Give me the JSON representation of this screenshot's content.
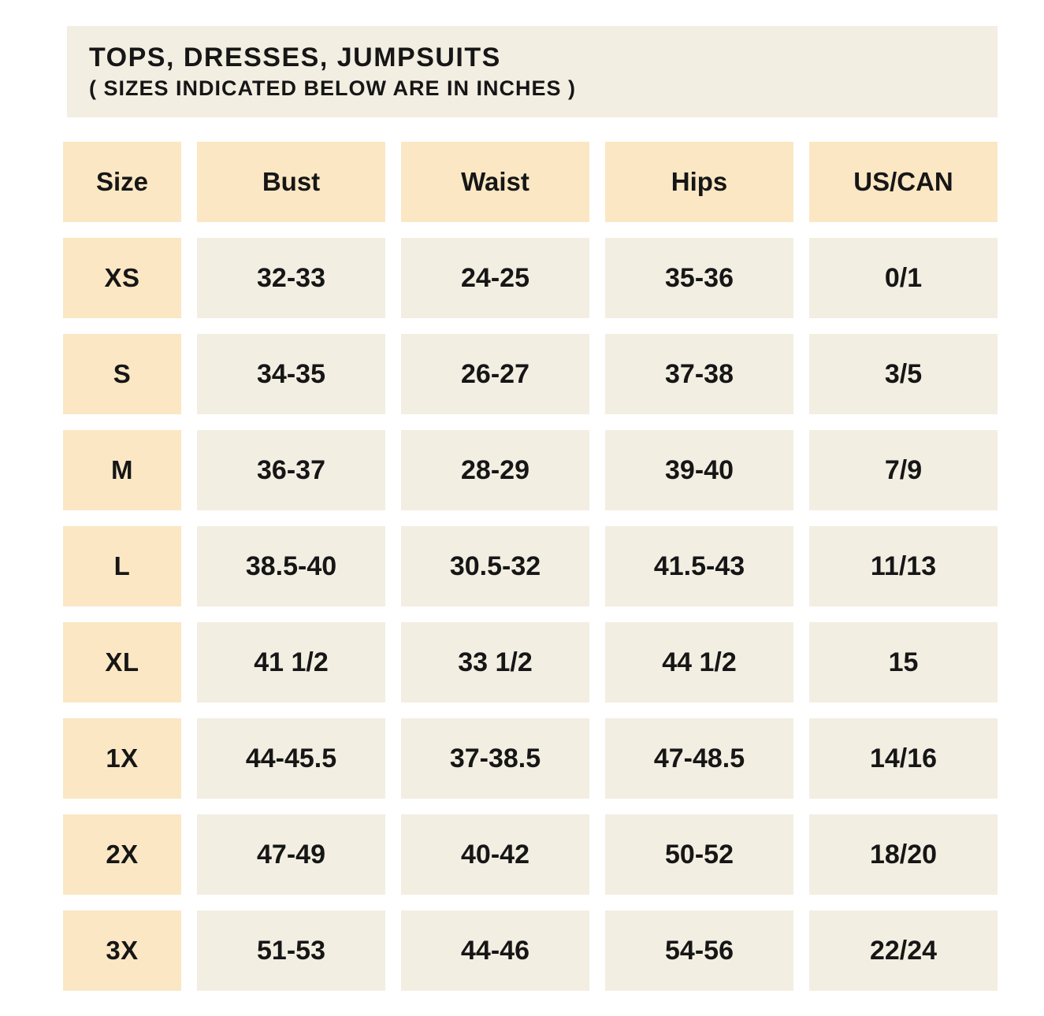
{
  "title": {
    "heading": "TOPS, DRESSES, JUMPSUITS",
    "subheading": "( SIZES INDICATED BELOW ARE IN INCHES )"
  },
  "chart_data": {
    "type": "table",
    "title": "TOPS, DRESSES, JUMPSUITS",
    "units": "inches",
    "columns": [
      "Size",
      "Bust",
      "Waist",
      "Hips",
      "US/CAN"
    ],
    "rows": [
      [
        "XS",
        "32-33",
        "24-25",
        "35-36",
        "0/1"
      ],
      [
        "S",
        "34-35",
        "26-27",
        "37-38",
        "3/5"
      ],
      [
        "M",
        "36-37",
        "28-29",
        "39-40",
        "7/9"
      ],
      [
        "L",
        "38.5-40",
        "30.5-32",
        "41.5-43",
        "11/13"
      ],
      [
        "XL",
        "41 1/2",
        "33 1/2",
        "44 1/2",
        "15"
      ],
      [
        "1X",
        "44-45.5",
        "37-38.5",
        "47-48.5",
        "14/16"
      ],
      [
        "2X",
        "47-49",
        "40-42",
        "50-52",
        "18/20"
      ],
      [
        "3X",
        "51-53",
        "44-46",
        "54-56",
        "22/24"
      ]
    ]
  },
  "colors": {
    "header_cell": "#FBE7C4",
    "data_cell": "#F3EEE2",
    "title_block": "#F3EEE2",
    "background": "#FFFFFF",
    "text": "#161616"
  }
}
